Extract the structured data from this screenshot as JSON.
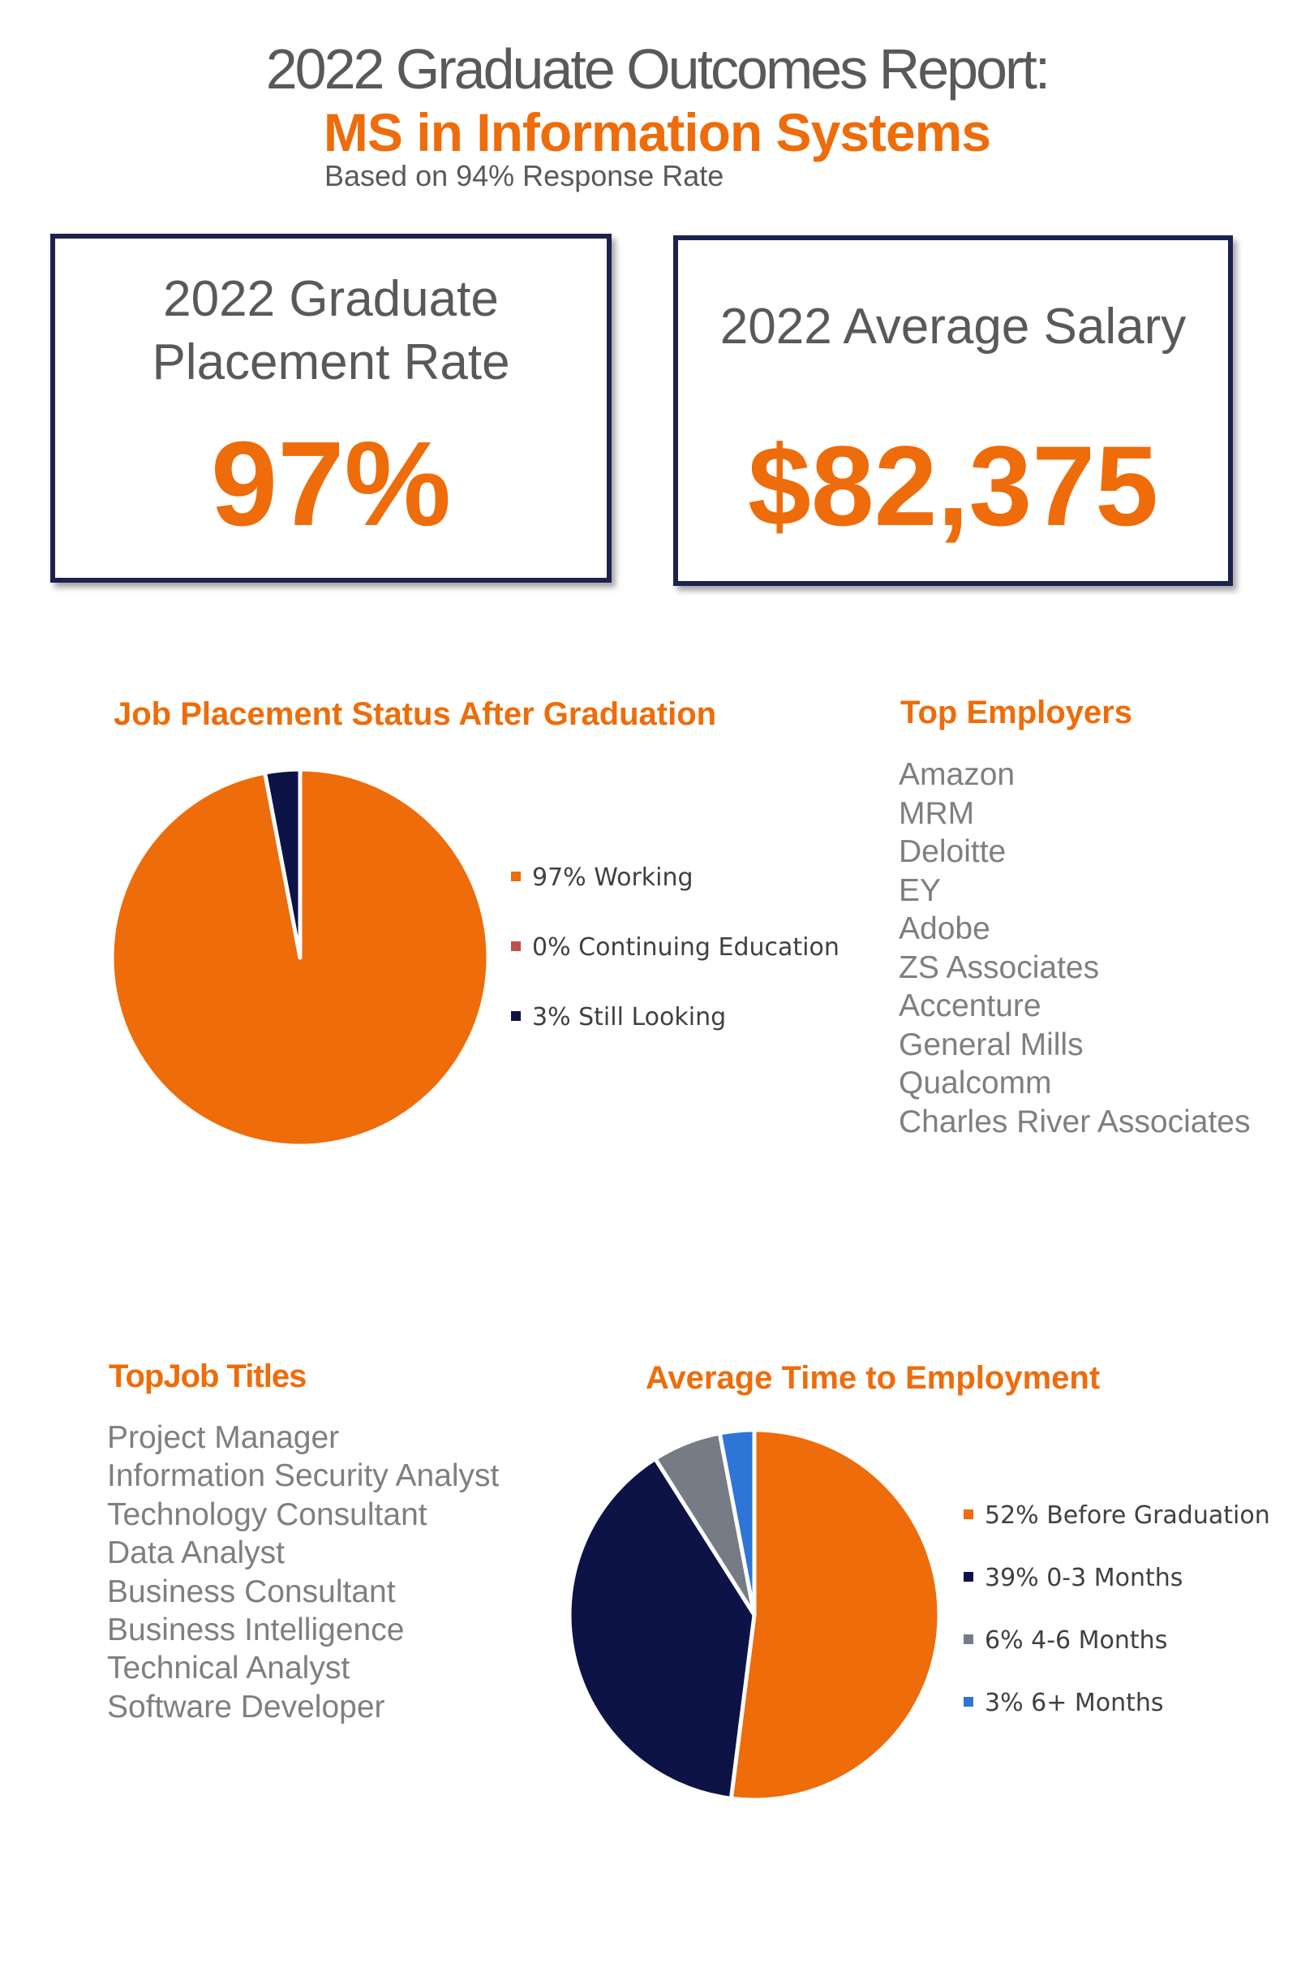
{
  "header": {
    "title": "2022 Graduate Outcomes Report:",
    "subtitle": "MS in Information Systems",
    "response_rate": "Based on 94% Response Rate"
  },
  "stats": {
    "placement": {
      "label_line1": "2022 Graduate",
      "label_line2": "Placement Rate",
      "value": "97%"
    },
    "salary": {
      "label": "2022 Average Salary",
      "value": "$82,375"
    }
  },
  "colors": {
    "orange": "#ee6c0a",
    "navy": "#0d1346",
    "maroon": "#c0504d",
    "gray": "#767b85",
    "blue": "#2e75d6",
    "box_border": "#1a2350"
  },
  "top_employers": {
    "heading": "Top Employers",
    "items": [
      "Amazon",
      "MRM",
      "Deloitte",
      "EY",
      "Adobe",
      "ZS Associates",
      "Accenture",
      "General Mills",
      "Qualcomm",
      "Charles River Associates"
    ]
  },
  "top_job_titles": {
    "heading": "TopJob Titles",
    "items": [
      "Project Manager",
      "Information Security Analyst",
      "Technology Consultant",
      "Data Analyst",
      "Business Consultant",
      "Business Intelligence",
      "Technical Analyst",
      "Software Developer"
    ]
  },
  "chart_data": [
    {
      "type": "pie",
      "title": "Job Placement Status After Graduation",
      "legend_position": "right",
      "slices": [
        {
          "label": "97% Working",
          "value": 97,
          "color": "#ee6c0a"
        },
        {
          "label": "0% Continuing Education",
          "value": 0,
          "color": "#c0504d"
        },
        {
          "label": "3% Still Looking",
          "value": 3,
          "color": "#0d1346"
        }
      ]
    },
    {
      "type": "pie",
      "title": "Average Time to Employment",
      "legend_position": "right",
      "slices": [
        {
          "label": "52% Before Graduation",
          "value": 52,
          "color": "#ee6c0a"
        },
        {
          "label": "39% 0-3 Months",
          "value": 39,
          "color": "#0d1346"
        },
        {
          "label": "6% 4-6 Months",
          "value": 6,
          "color": "#767b85"
        },
        {
          "label": "3% 6+ Months",
          "value": 3,
          "color": "#2e75d6"
        }
      ]
    }
  ]
}
